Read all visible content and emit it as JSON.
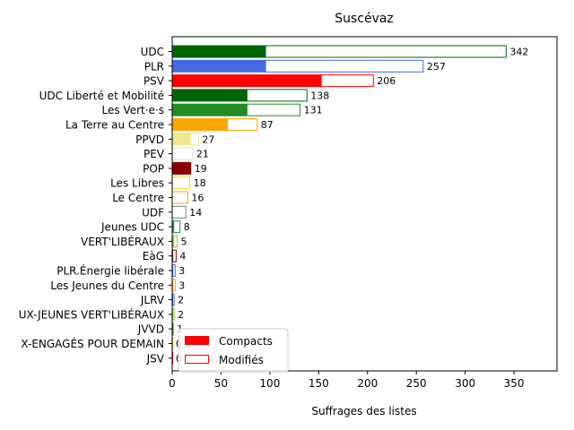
{
  "chart_data": {
    "type": "bar",
    "orientation": "horizontal",
    "title": "Suscévaz",
    "xlabel": "Suffrages des listes",
    "ylabel": "",
    "xlim": [
      0,
      394
    ],
    "xticks": [
      0,
      50,
      100,
      150,
      200,
      250,
      300,
      350
    ],
    "grid": false,
    "legend_position": "lower-left",
    "legend": [
      {
        "label": "Compacts",
        "style": "filled",
        "color": "#ff0000"
      },
      {
        "label": "Modifiés",
        "style": "outline",
        "color": "#ff0000"
      }
    ],
    "categories": [
      {
        "name": "UDC",
        "total": 342,
        "compact": 96,
        "color": "#006400",
        "total_label": "342"
      },
      {
        "name": "PLR",
        "total": 257,
        "compact": 96,
        "color": "#4169e1",
        "total_label": "257"
      },
      {
        "name": "PSV",
        "total": 206,
        "compact": 153,
        "color": "#ff0000",
        "total_label": "206"
      },
      {
        "name": "UDC Liberté et Mobilité",
        "total": 138,
        "compact": 77,
        "color": "#006400",
        "total_label": "138"
      },
      {
        "name": "Les Vert·e·s",
        "total": 131,
        "compact": 77,
        "color": "#228b22",
        "total_label": "131"
      },
      {
        "name": "La Terre au Centre",
        "total": 87,
        "compact": 57,
        "color": "#ffa500",
        "total_label": "87"
      },
      {
        "name": "PPVD",
        "total": 27,
        "compact": 19,
        "color": "#f0e68c",
        "total_label": "27"
      },
      {
        "name": "PEV",
        "total": 21,
        "compact": 0,
        "color": "#ffffff",
        "edge": "#dddddd",
        "total_label": "21"
      },
      {
        "name": "POP",
        "total": 19,
        "compact": 19,
        "color": "#8b0000",
        "total_label": "19"
      },
      {
        "name": "Les Libres",
        "total": 18,
        "compact": 0,
        "color": "#ffd700",
        "total_label": "18"
      },
      {
        "name": "Le Centre",
        "total": 16,
        "compact": 0,
        "color": "#ffa500",
        "total_label": "16"
      },
      {
        "name": "UDF",
        "total": 14,
        "compact": 0,
        "color": "#708090",
        "total_label": "14"
      },
      {
        "name": "Jeunes UDC",
        "total": 8,
        "compact": 2,
        "color": "#2e8b57",
        "total_label": "8"
      },
      {
        "name": "VERT'LIBÉRAUX",
        "total": 5,
        "compact": 2,
        "color": "#9acd32",
        "total_label": "5"
      },
      {
        "name": "EàG",
        "total": 4,
        "compact": 1,
        "color": "#8b0000",
        "total_label": "4"
      },
      {
        "name": "PLR.Énergie libérale",
        "total": 3,
        "compact": 1,
        "color": "#4169e1",
        "total_label": "3"
      },
      {
        "name": "Les Jeunes du Centre",
        "total": 3,
        "compact": 1,
        "color": "#ffa500",
        "total_label": "3"
      },
      {
        "name": "JLRV",
        "total": 2,
        "compact": 1,
        "color": "#4169e1",
        "total_label": "2"
      },
      {
        "name": "UX-JEUNES VERT'LIBÉRAUX",
        "total": 2,
        "compact": 1,
        "color": "#9acd32",
        "total_label": "2"
      },
      {
        "name": "JVVD",
        "total": 1,
        "compact": 1,
        "color": "#228b22",
        "total_label": "1"
      },
      {
        "name": "X-ENGAGÉS POUR DEMAIN",
        "total": 0,
        "compact": 0,
        "color": "#ffa500",
        "total_label": "0"
      },
      {
        "name": "JSV",
        "total": 0,
        "compact": 0,
        "color": "#ff0000",
        "total_label": "0"
      }
    ]
  }
}
